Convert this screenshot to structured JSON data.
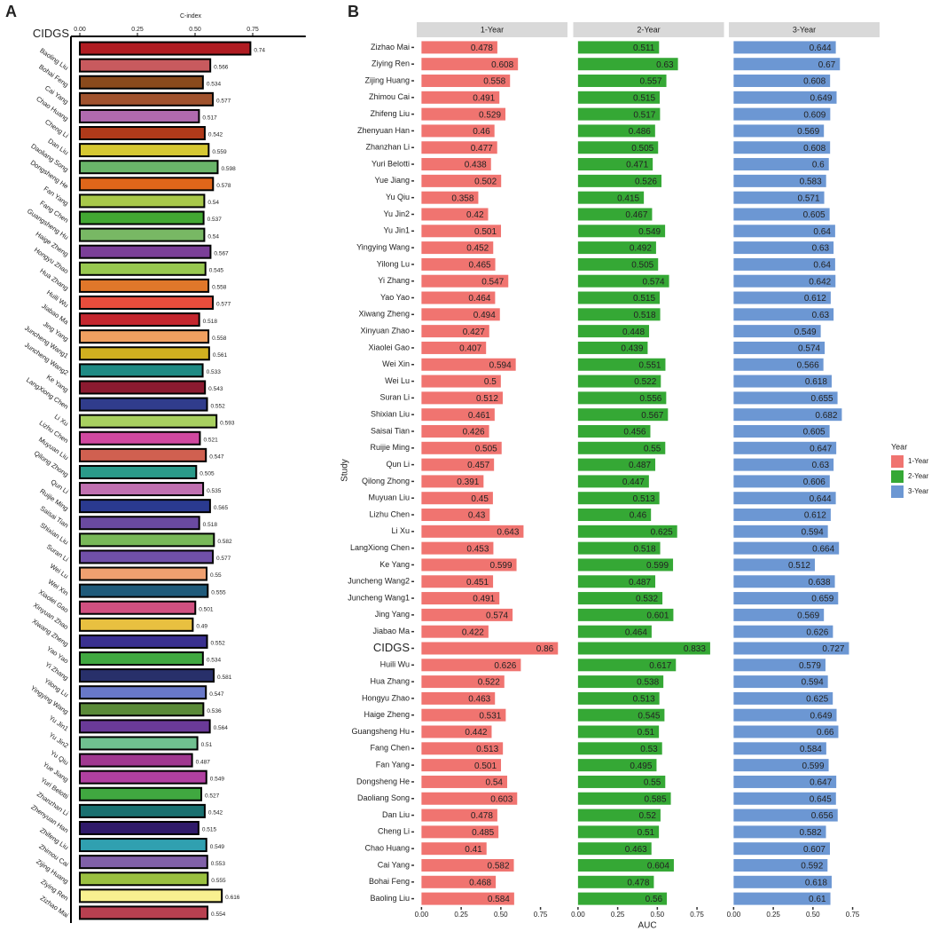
{
  "chart_data": [
    {
      "type": "hbar_outlined",
      "panel": "A",
      "xlabel": "C-index",
      "highlight": "CIDGS",
      "xlim": [
        -0.03,
        0.98
      ],
      "xticks": [
        {
          "value": 0,
          "label": "0.00"
        },
        {
          "value": 0.25,
          "label": "0.25"
        },
        {
          "value": 0.5,
          "label": "0.50"
        },
        {
          "value": 0.75,
          "label": "0.75"
        }
      ],
      "categories": [
        "CIDGS",
        "Baoling Liu",
        "Bohai Feng",
        "Cai Yang",
        "Chao Huang",
        "Cheng Li",
        "Dan Liu",
        "Daoliang Song",
        "Dongsheng He",
        "Fan Yang",
        "Fang Chen",
        "Guangsheng Hu",
        "Haige Zheng",
        "Hongyu Zhao",
        "Hua Zhang",
        "Huili Wu",
        "Jiabao Ma",
        "Jing Yang",
        "Juncheng Wang1",
        "Juncheng Wang2",
        "Ke Yang",
        "LangXiong Chen",
        "Li Xu",
        "Lizhu Chen",
        "Muyuan Liu",
        "Qilong Zhong",
        "Qun Li",
        "Ruijie Ming",
        "Saisai Tian",
        "Shixian Liu",
        "Suran Li",
        "Wei Lu",
        "Wei Xin",
        "Xiaolei Gao",
        "Xinyuan Zhao",
        "Xiwang Zheng",
        "Yao Yao",
        "Yi Zhang",
        "Yilong Lu",
        "Yingying Wang",
        "Yu Jin1",
        "Yu Jin2",
        "Yu Qiu",
        "Yue Jiang",
        "Yuri Belotti",
        "Zhanzhan Li",
        "Zhenyuan Han",
        "Zhifeng Liu",
        "Zhimou Cai",
        "Zijing Huang",
        "Ziying Ren",
        "Zizhao Mai"
      ],
      "values": [
        0.74,
        0.566,
        0.534,
        0.577,
        0.517,
        0.542,
        0.559,
        0.598,
        0.578,
        0.54,
        0.537,
        0.54,
        0.567,
        0.545,
        0.558,
        0.577,
        0.518,
        0.558,
        0.561,
        0.533,
        0.543,
        0.552,
        0.593,
        0.521,
        0.547,
        0.505,
        0.535,
        0.565,
        0.518,
        0.582,
        0.577,
        0.55,
        0.555,
        0.501,
        0.49,
        0.552,
        0.534,
        0.581,
        0.547,
        0.536,
        0.564,
        0.51,
        0.487,
        0.549,
        0.527,
        0.542,
        0.515,
        0.549,
        0.553,
        0.555,
        0.616,
        0.554
      ],
      "colors": [
        "#b01c22",
        "#c85a5e",
        "#8a4a1c",
        "#a0522d",
        "#b06aaf",
        "#b03a1a",
        "#d6c832",
        "#6ab56a",
        "#e0661a",
        "#a8c84a",
        "#42a832",
        "#78b864",
        "#7b3f98",
        "#98c850",
        "#e0772a",
        "#e84d3c",
        "#c4262e",
        "#f0a060",
        "#d0b020",
        "#1f8a84",
        "#8b1a30",
        "#303c8c",
        "#a8d060",
        "#d048a0",
        "#d06050",
        "#2a9a8a",
        "#c070b0",
        "#2a3a90",
        "#6a4aa0",
        "#78b858",
        "#7050a8",
        "#f0a070",
        "#1f5a7a",
        "#d05080",
        "#e8c040",
        "#3a3090",
        "#40a840",
        "#28306a",
        "#6878c8",
        "#5a8a38",
        "#6a3a98",
        "#70c090",
        "#a03890",
        "#b040a0",
        "#40a840",
        "#1a7070",
        "#301a6a",
        "#30a0b0",
        "#8060a8",
        "#9ac040",
        "#f8f090",
        "#b84050"
      ]
    },
    {
      "type": "faceted_hbar",
      "panel": "B",
      "xlabel": "AUC",
      "ylabel": "Study",
      "legend_title": "Year",
      "legend": "right",
      "highlight": "CIDGS",
      "xlim": [
        -0.03,
        0.92
      ],
      "xticks": [
        {
          "value": 0,
          "label": "0.00"
        },
        {
          "value": 0.25,
          "label": "0.25"
        },
        {
          "value": 0.5,
          "label": "0.50"
        },
        {
          "value": 0.75,
          "label": "0.75"
        }
      ],
      "categories": [
        "Zizhao Mai",
        "Ziying Ren",
        "Zijing Huang",
        "Zhimou Cai",
        "Zhifeng Liu",
        "Zhenyuan Han",
        "Zhanzhan Li",
        "Yuri Belotti",
        "Yue Jiang",
        "Yu Qiu",
        "Yu Jin2",
        "Yu Jin1",
        "Yingying Wang",
        "Yilong Lu",
        "Yi Zhang",
        "Yao Yao",
        "Xiwang Zheng",
        "Xinyuan Zhao",
        "Xiaolei Gao",
        "Wei Xin",
        "Wei Lu",
        "Suran Li",
        "Shixian Liu",
        "Saisai Tian",
        "Ruijie Ming",
        "Qun Li",
        "Qilong Zhong",
        "Muyuan Liu",
        "Lizhu Chen",
        "Li Xu",
        "LangXiong Chen",
        "Ke Yang",
        "Juncheng Wang2",
        "Juncheng Wang1",
        "Jing Yang",
        "Jiabao Ma",
        "CIDGS",
        "Huili Wu",
        "Hua Zhang",
        "Hongyu Zhao",
        "Haige Zheng",
        "Guangsheng Hu",
        "Fang Chen",
        "Fan Yang",
        "Dongsheng He",
        "Daoliang Song",
        "Dan Liu",
        "Cheng Li",
        "Chao Huang",
        "Cai Yang",
        "Bohai Feng",
        "Baoling Liu"
      ],
      "series": [
        {
          "name": "1-Year",
          "color": "#f07470",
          "values": [
            0.478,
            0.608,
            0.558,
            0.491,
            0.529,
            0.46,
            0.477,
            0.438,
            0.502,
            0.358,
            0.42,
            0.501,
            0.452,
            0.465,
            0.547,
            0.464,
            0.494,
            0.427,
            0.407,
            0.594,
            0.5,
            0.512,
            0.461,
            0.426,
            0.505,
            0.457,
            0.391,
            0.45,
            0.43,
            0.643,
            0.453,
            0.599,
            0.451,
            0.491,
            0.574,
            0.422,
            0.86,
            0.626,
            0.522,
            0.463,
            0.531,
            0.442,
            0.513,
            0.501,
            0.54,
            0.603,
            0.478,
            0.485,
            0.41,
            0.582,
            0.468,
            0.584
          ]
        },
        {
          "name": "2-Year",
          "color": "#35a835",
          "values": [
            0.511,
            0.63,
            0.557,
            0.515,
            0.517,
            0.486,
            0.505,
            0.471,
            0.526,
            0.415,
            0.467,
            0.549,
            0.492,
            0.505,
            0.574,
            0.515,
            0.518,
            0.448,
            0.439,
            0.551,
            0.522,
            0.556,
            0.567,
            0.456,
            0.55,
            0.487,
            0.447,
            0.513,
            0.46,
            0.625,
            0.518,
            0.599,
            0.487,
            0.532,
            0.601,
            0.464,
            0.833,
            0.617,
            0.538,
            0.513,
            0.545,
            0.51,
            0.53,
            0.495,
            0.55,
            0.585,
            0.52,
            0.51,
            0.463,
            0.604,
            0.478,
            0.56
          ]
        },
        {
          "name": "3-Year",
          "color": "#6c97d3",
          "values": [
            0.644,
            0.67,
            0.608,
            0.649,
            0.609,
            0.569,
            0.608,
            0.6,
            0.583,
            0.571,
            0.605,
            0.64,
            0.63,
            0.64,
            0.642,
            0.612,
            0.63,
            0.549,
            0.574,
            0.566,
            0.618,
            0.655,
            0.682,
            0.605,
            0.647,
            0.63,
            0.606,
            0.644,
            0.612,
            0.594,
            0.664,
            0.512,
            0.638,
            0.659,
            0.569,
            0.626,
            0.727,
            0.579,
            0.594,
            0.625,
            0.649,
            0.66,
            0.584,
            0.599,
            0.647,
            0.645,
            0.656,
            0.582,
            0.607,
            0.592,
            0.618,
            0.61
          ]
        }
      ]
    }
  ]
}
